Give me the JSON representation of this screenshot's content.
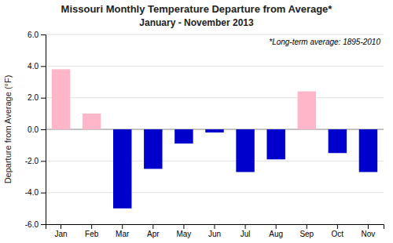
{
  "chart_data": {
    "type": "bar",
    "title": "Missouri Monthly Temperature Departure from Average*",
    "subtitle": "January - November 2013",
    "ylabel": "Departure from Average (°F)",
    "annotation": "*Long-term average: 1895-2010",
    "categories": [
      "Jan",
      "Feb",
      "Mar",
      "Apr",
      "May",
      "Jun",
      "Jul",
      "Aug",
      "Sep",
      "Oct",
      "Nov"
    ],
    "values": [
      3.8,
      1.0,
      -5.0,
      -2.5,
      -0.9,
      -0.2,
      -2.7,
      -1.9,
      2.4,
      -1.5,
      -2.7
    ],
    "colors": [
      "#ffb6c8",
      "#ffb6c8",
      "#0000cc",
      "#0000cc",
      "#0000cc",
      "#0000cc",
      "#0000cc",
      "#0000cc",
      "#ffb6c8",
      "#0000cc",
      "#0000cc"
    ],
    "ylim": [
      -6.0,
      6.0
    ],
    "yticks": [
      {
        "value": -6.0,
        "label": "-6.0"
      },
      {
        "value": -4.0,
        "label": "-4.0"
      },
      {
        "value": -2.0,
        "label": "-2.0"
      },
      {
        "value": 0.0,
        "label": "0.0"
      },
      {
        "value": 2.0,
        "label": "2.0"
      },
      {
        "value": 4.0,
        "label": "4.0"
      },
      {
        "value": 6.0,
        "label": "6.0"
      }
    ],
    "grid": true
  }
}
